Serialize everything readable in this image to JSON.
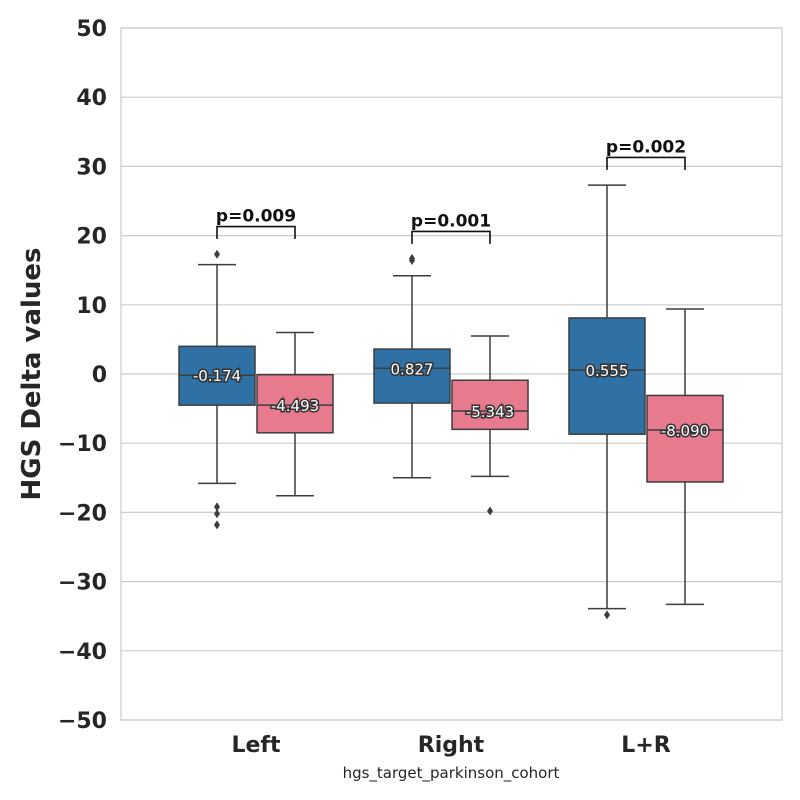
{
  "chart_data": {
    "type": "box",
    "xlabel": "hgs_target_parkinson_cohort",
    "ylabel": "HGS Delta values",
    "ylim": [
      -50,
      50
    ],
    "yticks": [
      50,
      40,
      30,
      20,
      10,
      0,
      -10,
      -20,
      -30,
      -40,
      -50
    ],
    "ytick_labels": [
      "50",
      "40",
      "30",
      "20",
      "10",
      "0",
      "−10",
      "−20",
      "−30",
      "−40",
      "−50"
    ],
    "grid": true,
    "categories": [
      "Left",
      "Right",
      "L+R"
    ],
    "series_colors": [
      "#2f71a5",
      "#e87a8e"
    ],
    "boxes": [
      {
        "category": 0,
        "series": 0,
        "q1": -4.5,
        "median": -0.174,
        "q3": 4.0,
        "whisker_low": -15.8,
        "whisker_high": 15.8,
        "outliers": [
          17.3,
          -19.2,
          -20.2,
          -21.8
        ],
        "median_label": "-0.174"
      },
      {
        "category": 0,
        "series": 1,
        "q1": -8.5,
        "median": -4.493,
        "q3": -0.1,
        "whisker_low": -17.6,
        "whisker_high": 6.0,
        "outliers": [],
        "median_label": "-4.493"
      },
      {
        "category": 1,
        "series": 0,
        "q1": -4.2,
        "median": 0.827,
        "q3": 3.6,
        "whisker_low": -15.0,
        "whisker_high": 14.2,
        "outliers": [
          16.7,
          16.4
        ],
        "median_label": "0.827"
      },
      {
        "category": 1,
        "series": 1,
        "q1": -8.0,
        "median": -5.343,
        "q3": -0.9,
        "whisker_low": -14.8,
        "whisker_high": 5.5,
        "outliers": [
          -19.8
        ],
        "median_label": "-5.343"
      },
      {
        "category": 2,
        "series": 0,
        "q1": -8.7,
        "median": 0.555,
        "q3": 8.1,
        "whisker_low": -33.9,
        "whisker_high": 27.3,
        "outliers": [
          -34.8
        ],
        "median_label": "0.555"
      },
      {
        "category": 2,
        "series": 1,
        "q1": -15.6,
        "median": -8.09,
        "q3": -3.1,
        "whisker_low": -33.3,
        "whisker_high": 9.4,
        "outliers": [],
        "median_label": "-8.090"
      }
    ],
    "annotations": [
      {
        "category": 0,
        "text": "p=0.009",
        "bracket_y": 21.3,
        "drop_y": 19.5
      },
      {
        "category": 1,
        "text": "p=0.001",
        "bracket_y": 20.6,
        "drop_y": 18.8
      },
      {
        "category": 2,
        "text": "p=0.002",
        "bracket_y": 31.3,
        "drop_y": 29.5
      }
    ]
  }
}
